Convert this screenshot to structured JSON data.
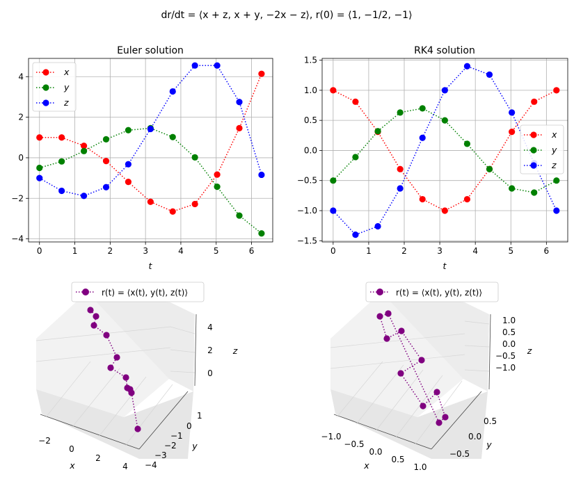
{
  "suptitle": "dr/dt = ⟨x + z, x + y, −2x − z⟩, r(0) = ⟨1, −1/2, −1⟩",
  "colors": {
    "x": "#ff0000",
    "y": "#008000",
    "z": "#0000ff",
    "curve3d": "#800080"
  },
  "chart_data": [
    {
      "type": "line",
      "title": "Euler solution",
      "xlabel": "t",
      "ylabel": "",
      "xlim": [
        -0.31,
        6.6
      ],
      "ylim": [
        -4.15,
        4.9
      ],
      "xticks": [
        "0",
        "1",
        "2",
        "3",
        "4",
        "5",
        "6"
      ],
      "yticks": [
        "−4",
        "−2",
        "0",
        "2",
        "4"
      ],
      "grid": true,
      "legend": "top-left",
      "x": [
        0,
        0.628,
        1.257,
        1.885,
        2.513,
        3.142,
        3.77,
        4.398,
        5.027,
        5.655,
        6.283
      ],
      "series": [
        {
          "name": "x",
          "values": [
            1.0,
            1.0,
            0.59,
            -0.16,
            -1.19,
            -2.17,
            -2.65,
            -2.28,
            -0.83,
            1.46,
            4.14
          ]
        },
        {
          "name": "y",
          "values": [
            -0.5,
            -0.18,
            0.33,
            0.91,
            1.36,
            1.46,
            1.02,
            0.02,
            -1.43,
            -2.85,
            -3.73
          ]
        },
        {
          "name": "z",
          "values": [
            -1.0,
            -1.63,
            -1.88,
            -1.45,
            -0.32,
            1.42,
            3.27,
            4.55,
            4.55,
            2.75,
            -0.84
          ]
        }
      ]
    },
    {
      "type": "line",
      "title": "RK4 solution",
      "xlabel": "t",
      "ylabel": "",
      "xlim": [
        -0.31,
        6.6
      ],
      "ylim": [
        -1.52,
        1.53
      ],
      "xticks": [
        "0",
        "1",
        "2",
        "3",
        "4",
        "5",
        "6"
      ],
      "yticks": [
        "−1.5",
        "−1.0",
        "−0.5",
        "0.0",
        "0.5",
        "1.0",
        "1.5"
      ],
      "grid": true,
      "legend": "right",
      "x": [
        0,
        0.628,
        1.257,
        1.885,
        2.513,
        3.142,
        3.77,
        4.398,
        5.027,
        5.655,
        6.283
      ],
      "series": [
        {
          "name": "x",
          "values": [
            1.0,
            0.81,
            0.31,
            -0.31,
            -0.81,
            -1.0,
            -0.81,
            -0.31,
            0.31,
            0.81,
            1.0
          ]
        },
        {
          "name": "y",
          "values": [
            -0.5,
            -0.11,
            0.32,
            0.63,
            0.7,
            0.5,
            0.11,
            -0.31,
            -0.63,
            -0.7,
            -0.5
          ]
        },
        {
          "name": "z",
          "values": [
            -1.0,
            -1.4,
            -1.26,
            -0.63,
            0.21,
            1.0,
            1.4,
            1.26,
            0.63,
            -0.21,
            -1.0
          ]
        }
      ]
    },
    {
      "type": "scatter",
      "subtype": "3d-line",
      "title": "",
      "legend": "r(t) = ⟨x(t), y(t), z(t)⟩",
      "legend_placement": "top-center",
      "xlabel": "x",
      "ylabel": "y",
      "zlabel": "z",
      "xticks": [
        "−2",
        "0",
        "2",
        "4"
      ],
      "yticks": [
        "1",
        "0",
        "−1",
        "−2",
        "−3",
        "−4"
      ],
      "zticks": [
        "4",
        "2",
        "0"
      ]
    },
    {
      "type": "scatter",
      "subtype": "3d-line",
      "title": "",
      "legend": "r(t) = ⟨x(t), y(t), z(t)⟩",
      "legend_placement": "top-center",
      "xlabel": "x",
      "ylabel": "y",
      "zlabel": "z",
      "xticks": [
        "−1.0",
        "−0.5",
        "0.0",
        "0.5",
        "1.0"
      ],
      "yticks": [
        "0.5",
        "0.0",
        "−0.5"
      ],
      "zticks": [
        "1.0",
        "0.5",
        "0.0",
        "−0.5",
        "−1.0"
      ]
    }
  ]
}
